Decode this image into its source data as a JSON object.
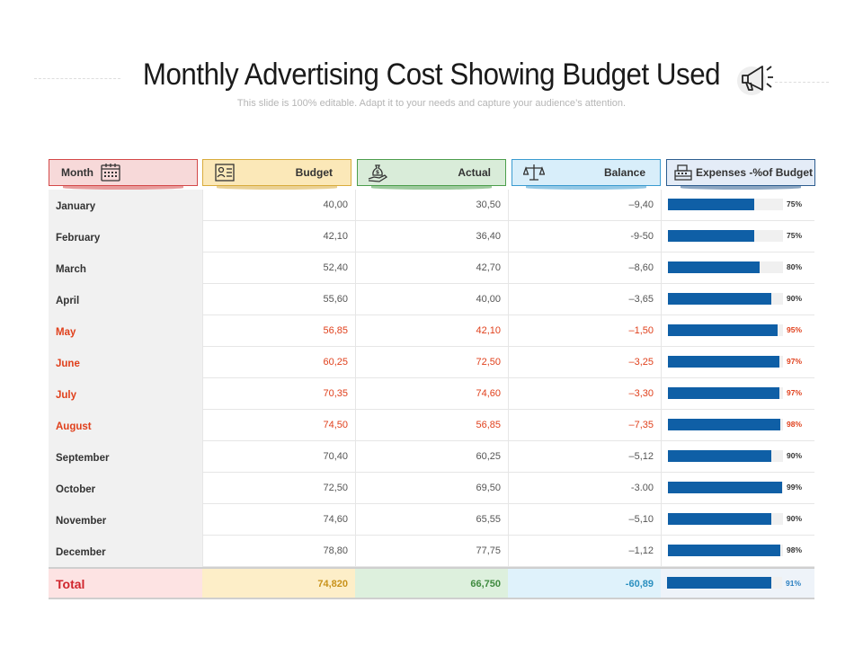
{
  "title": "Monthly Advertising Cost Showing Budget Used",
  "subtitle": "This slide is 100% editable. Adapt it to your needs and capture your audience’s attention.",
  "colors": {
    "bar": "#0f5fa6",
    "highlight": "#e0401c",
    "month_header": "#f7d9d9",
    "budget_header": "#fbe8b8",
    "actual_header": "#d9ecd9",
    "balance_header": "#d8eefa",
    "expenses_header": "#e4ecf7"
  },
  "headers": {
    "month": {
      "label": "Month",
      "icon": "calendar-icon"
    },
    "budget": {
      "label": "Budget",
      "icon": "budget-report-icon"
    },
    "actual": {
      "label": "Actual",
      "icon": "money-bag-hand-icon"
    },
    "balance": {
      "label": "Balance",
      "icon": "balance-scale-icon"
    },
    "expenses": {
      "label": "Expenses -%of Budget",
      "icon": "cash-register-icon"
    }
  },
  "rows": [
    {
      "month": "January",
      "budget": "40,00",
      "actual": "30,50",
      "balance": "–9,40",
      "pct_label": "75%",
      "pct": 75,
      "highlight": false
    },
    {
      "month": "February",
      "budget": "42,10",
      "actual": "36,40",
      "balance": "-9-50",
      "pct_label": "75%",
      "pct": 75,
      "highlight": false
    },
    {
      "month": "March",
      "budget": "52,40",
      "actual": "42,70",
      "balance": "–8,60",
      "pct_label": "80%",
      "pct": 80,
      "highlight": false
    },
    {
      "month": "April",
      "budget": "55,60",
      "actual": "40,00",
      "balance": "–3,65",
      "pct_label": "90%",
      "pct": 90,
      "highlight": false
    },
    {
      "month": "May",
      "budget": "56,85",
      "actual": "42,10",
      "balance": "–1,50",
      "pct_label": "95%",
      "pct": 95,
      "highlight": true
    },
    {
      "month": "June",
      "budget": "60,25",
      "actual": "72,50",
      "balance": "–3,25",
      "pct_label": "97%",
      "pct": 97,
      "highlight": true
    },
    {
      "month": "July",
      "budget": "70,35",
      "actual": "74,60",
      "balance": "–3,30",
      "pct_label": "97%",
      "pct": 97,
      "highlight": true
    },
    {
      "month": "August",
      "budget": "74,50",
      "actual": "56,85",
      "balance": "–7,35",
      "pct_label": "98%",
      "pct": 98,
      "highlight": true
    },
    {
      "month": "September",
      "budget": "70,40",
      "actual": "60,25",
      "balance": "–5,12",
      "pct_label": "90%",
      "pct": 90,
      "highlight": false
    },
    {
      "month": "October",
      "budget": "72,50",
      "actual": "69,50",
      "balance": "-3.00",
      "pct_label": "99%",
      "pct": 99,
      "highlight": false
    },
    {
      "month": "November",
      "budget": "74,60",
      "actual": "65,55",
      "balance": "–5,10",
      "pct_label": "90%",
      "pct": 90,
      "highlight": false
    },
    {
      "month": "December",
      "budget": "78,80",
      "actual": "77,75",
      "balance": "–1,12",
      "pct_label": "98%",
      "pct": 98,
      "highlight": false
    }
  ],
  "total": {
    "label": "Total",
    "budget": "74,820",
    "actual": "66,750",
    "balance": "-60,89",
    "pct_label": "91%",
    "pct": 91
  }
}
